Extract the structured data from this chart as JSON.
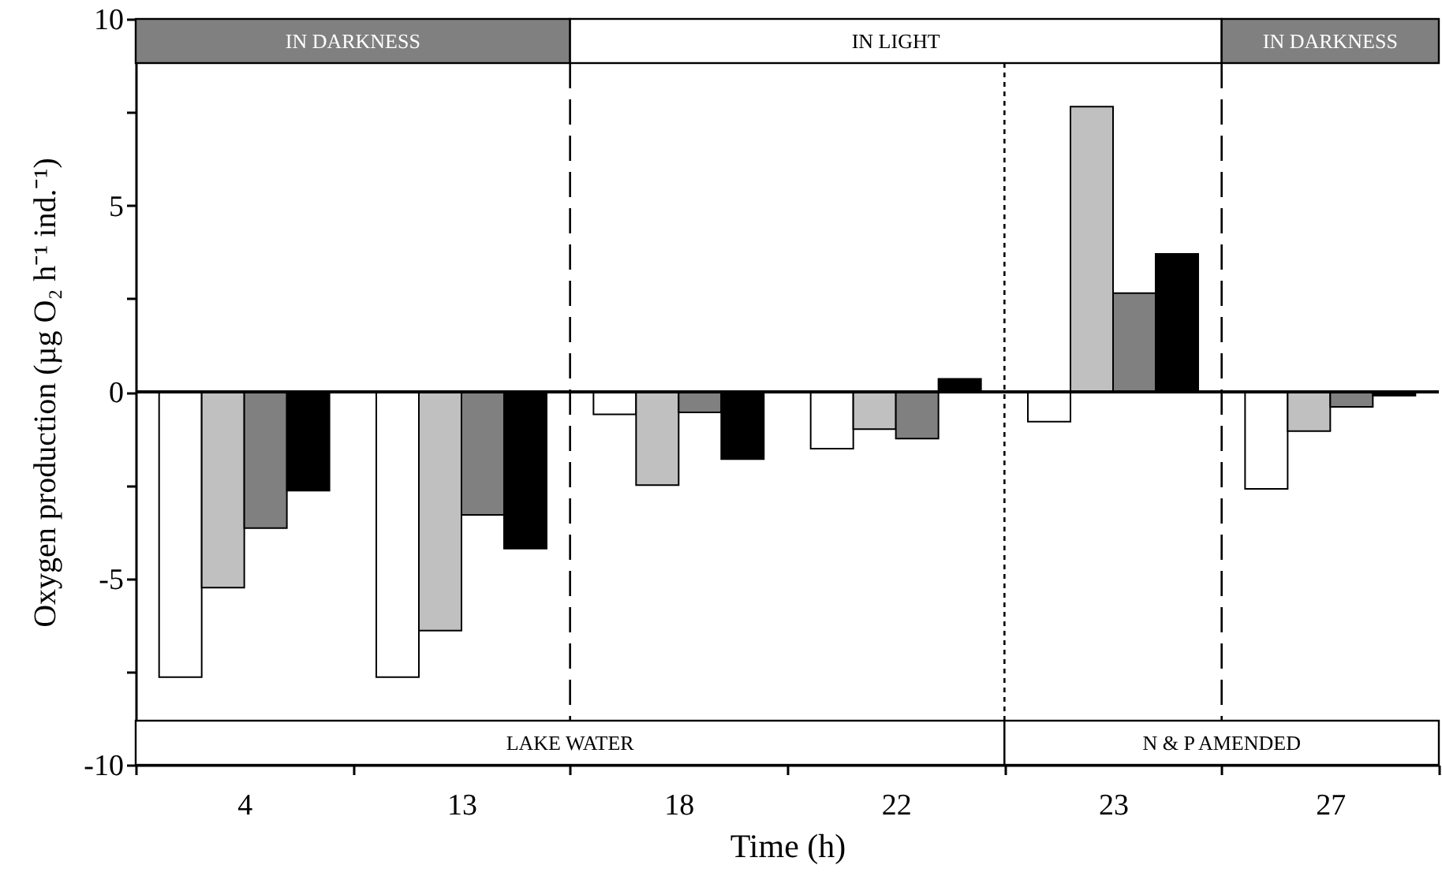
{
  "chart_data": {
    "type": "bar",
    "xlabel": "Time (h)",
    "ylabel": "Oxygen production (µg O₂ h⁻¹ ind.⁻¹)",
    "categories": [
      "4",
      "13",
      "18",
      "22",
      "23",
      "27"
    ],
    "series": [
      {
        "color": "#ffffff",
        "values": [
          -7.65,
          -7.65,
          -0.6,
          -1.52,
          -0.8,
          -2.6
        ]
      },
      {
        "color": "#c0c0c0",
        "values": [
          -5.25,
          -6.4,
          -2.5,
          -1.0,
          7.65,
          -1.05
        ]
      },
      {
        "color": "#808080",
        "values": [
          -3.65,
          -3.3,
          -0.55,
          -1.25,
          2.65,
          -0.4
        ]
      },
      {
        "color": "#000000",
        "values": [
          -2.65,
          -4.2,
          -1.8,
          0.35,
          3.7,
          -0.1
        ]
      }
    ],
    "ylim": [
      -10,
      10
    ],
    "yticks": [
      -10,
      {
        "value": -7.5,
        "label": null
      },
      -5,
      {
        "value": -2.5,
        "label": null
      },
      0,
      {
        "value": 2.5,
        "label": null
      },
      5,
      {
        "value": 7.5,
        "label": null
      },
      10
    ],
    "ref_lines": [
      {
        "axis": "y",
        "value": 0
      }
    ],
    "annotations": [
      "IN DARKNESS",
      "IN LIGHT",
      "IN DARKNESS",
      "LAKE WATER",
      "N & P  AMENDED"
    ],
    "grid": false
  }
}
